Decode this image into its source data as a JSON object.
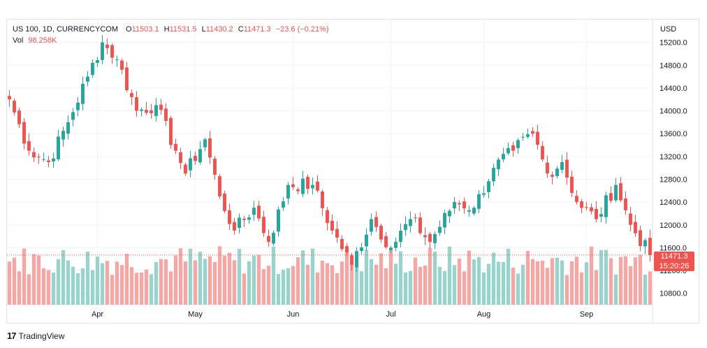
{
  "legend": {
    "symbol": "US 100, 1D, CURRENCYCOM",
    "open_key": "O",
    "open": "11503.1",
    "high_key": "H",
    "high": "11531.5",
    "low_key": "L",
    "low": "11430.2",
    "close_key": "C",
    "close": "11471.3",
    "change": "−23.6 (−0.21%)",
    "vol_key": "Vol",
    "vol": "98.258K"
  },
  "currency": "USD",
  "last_price": {
    "price": "11471.3",
    "countdown": "15:20:26",
    "value": 11471.3
  },
  "branding": {
    "name": "TradingView",
    "logo_glyph": "17"
  },
  "colors": {
    "up": "#26a69a",
    "down": "#ef5350",
    "up_vol": "#9ad3cb",
    "down_vol": "#f5a7a5",
    "grid": "#f0f3fa"
  },
  "chart_data": {
    "type": "candlestick",
    "y_axis": {
      "ticks": [
        10800,
        11200,
        11600,
        12000,
        12400,
        12800,
        13200,
        13600,
        14000,
        14400,
        14800,
        15200
      ],
      "tick_labels": [
        "10800.0",
        "11200.0",
        "11600.0",
        "12000.0",
        "12400.0",
        "12800.0",
        "13200.0",
        "13600.0",
        "14000.0",
        "14400.0",
        "14800.0",
        "15200.0"
      ],
      "range": [
        10600,
        15600
      ]
    },
    "x_axis": {
      "labels": [
        {
          "label": "Apr",
          "index": 18
        },
        {
          "label": "May",
          "index": 38
        },
        {
          "label": "Jun",
          "index": 58
        },
        {
          "label": "Jul",
          "index": 78
        },
        {
          "label": "Aug",
          "index": 97
        },
        {
          "label": "Sep",
          "index": 118
        }
      ],
      "total_bars": 132
    },
    "key_points": [
      {
        "index": 0,
        "close": 14200
      },
      {
        "index": 4,
        "close": 13300
      },
      {
        "index": 8,
        "close": 13100
      },
      {
        "index": 12,
        "close": 13800
      },
      {
        "index": 16,
        "close": 14600
      },
      {
        "index": 19,
        "close": 15200
      },
      {
        "index": 22,
        "close": 14900
      },
      {
        "index": 26,
        "close": 14000
      },
      {
        "index": 30,
        "close": 14100
      },
      {
        "index": 34,
        "close": 13300
      },
      {
        "index": 36,
        "close": 12900
      },
      {
        "index": 40,
        "close": 13500
      },
      {
        "index": 43,
        "close": 12500
      },
      {
        "index": 46,
        "close": 11900
      },
      {
        "index": 50,
        "close": 12300
      },
      {
        "index": 53,
        "close": 11700
      },
      {
        "index": 57,
        "close": 12700
      },
      {
        "index": 62,
        "close": 12700
      },
      {
        "index": 66,
        "close": 11900
      },
      {
        "index": 70,
        "close": 11300
      },
      {
        "index": 74,
        "close": 12100
      },
      {
        "index": 78,
        "close": 11600
      },
      {
        "index": 82,
        "close": 12100
      },
      {
        "index": 86,
        "close": 11700
      },
      {
        "index": 91,
        "close": 12400
      },
      {
        "index": 95,
        "close": 12300
      },
      {
        "index": 99,
        "close": 13000
      },
      {
        "index": 103,
        "close": 13300
      },
      {
        "index": 107,
        "close": 13600
      },
      {
        "index": 110,
        "close": 12900
      },
      {
        "index": 113,
        "close": 13100
      },
      {
        "index": 116,
        "close": 12400
      },
      {
        "index": 120,
        "close": 12100
      },
      {
        "index": 124,
        "close": 12700
      },
      {
        "index": 127,
        "close": 12000
      },
      {
        "index": 131,
        "close": 11471.3
      }
    ],
    "volume_range": [
      0,
      150000
    ]
  }
}
